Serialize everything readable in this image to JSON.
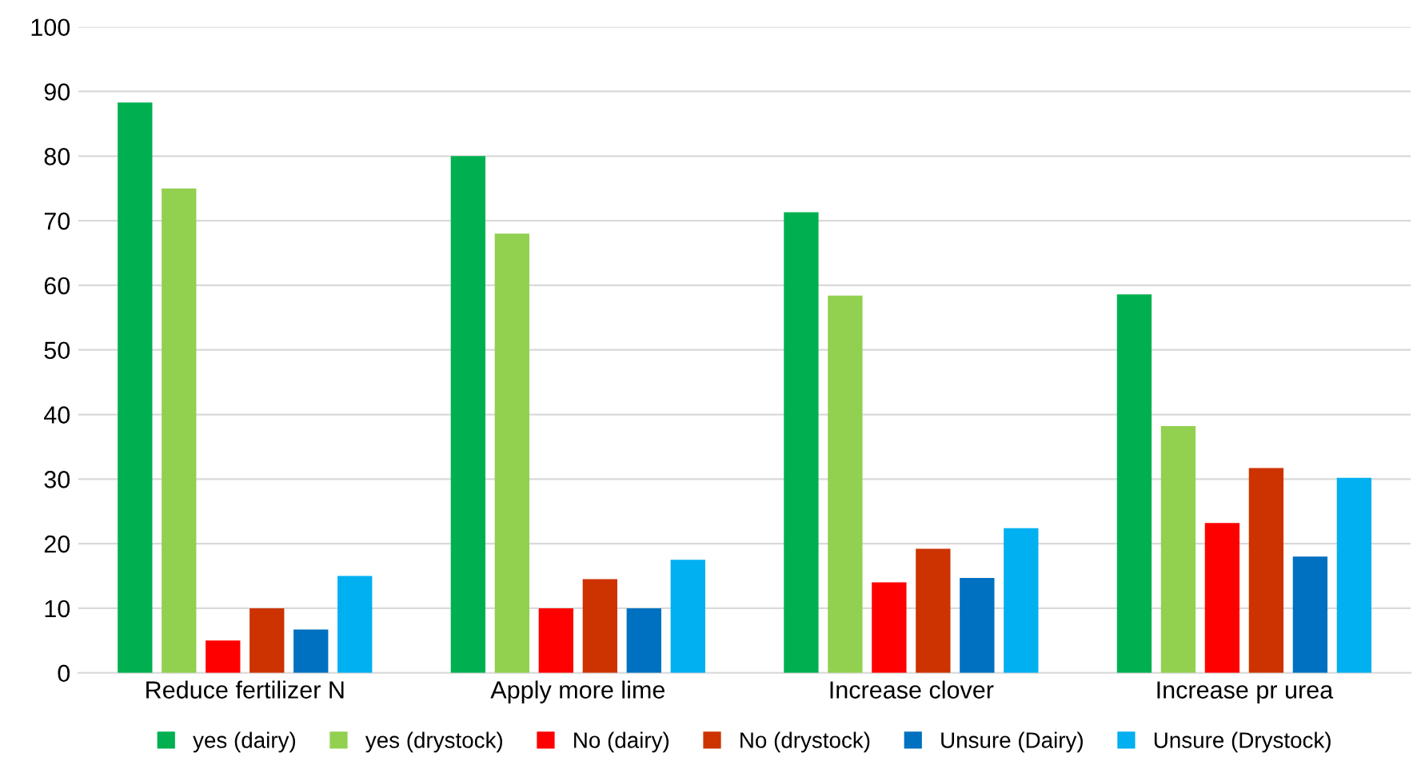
{
  "chart_data": {
    "type": "bar",
    "categories": [
      "Reduce fertilizer N",
      "Apply more lime",
      "Increase clover",
      "Increase pr urea"
    ],
    "series": [
      {
        "name": "yes (dairy)",
        "color": "#00b050",
        "values": [
          88.3,
          80,
          71.3,
          58.6
        ]
      },
      {
        "name": "yes (drystock)",
        "color": "#92d050",
        "values": [
          75,
          68,
          58.4,
          38.2
        ]
      },
      {
        "name": "No (dairy)",
        "color": "#ff0000",
        "values": [
          5,
          10,
          14,
          23.2
        ]
      },
      {
        "name": "No (drystock)",
        "color": "#cc3300",
        "values": [
          10,
          14.5,
          19.2,
          31.7
        ]
      },
      {
        "name": "Unsure (Dairy)",
        "color": "#0070c0",
        "values": [
          6.7,
          10,
          14.7,
          18
        ]
      },
      {
        "name": "Unsure (Drystock)",
        "color": "#00b0f0",
        "values": [
          15,
          17.5,
          22.4,
          30.2
        ]
      }
    ],
    "ylim": [
      0,
      100
    ],
    "yticks": [
      0,
      10,
      20,
      30,
      40,
      50,
      60,
      70,
      80,
      90,
      100
    ],
    "grid": "y",
    "legend": "bottom"
  }
}
